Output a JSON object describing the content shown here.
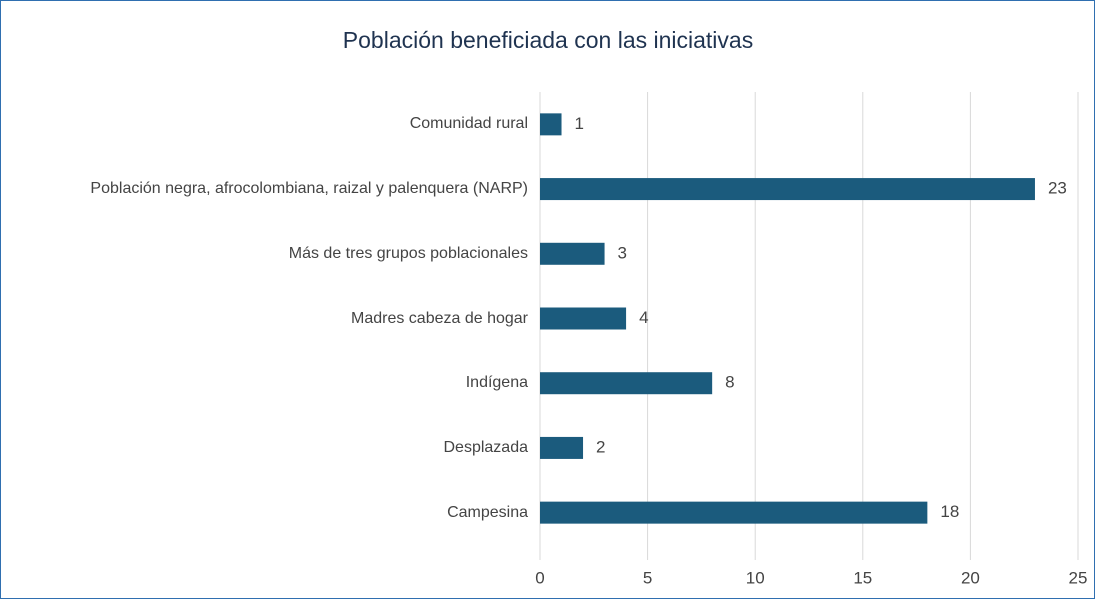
{
  "chart_data": {
    "type": "bar",
    "orientation": "horizontal",
    "title": "Población beneficiada con las iniciativas",
    "categories": [
      "Comunidad rural",
      "Población negra, afrocolombiana, raizal y palenquera (NARP)",
      "Más de tres grupos poblacionales",
      "Madres cabeza de hogar",
      "Indígena",
      "Desplazada",
      "Campesina"
    ],
    "values": [
      1,
      23,
      3,
      4,
      8,
      2,
      18
    ],
    "color": "#1b5b7d",
    "xlim": [
      0,
      25
    ],
    "xticks": [
      0,
      5,
      10,
      15,
      20,
      25
    ],
    "grid": true
  }
}
